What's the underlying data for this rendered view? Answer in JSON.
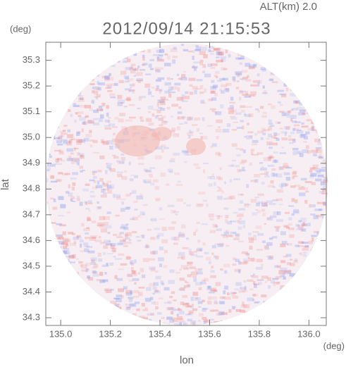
{
  "chart_data": {
    "type": "image",
    "annotation": "ALT(km) 2.0",
    "title": "2012/09/14 21:15:53",
    "xlabel": "lon",
    "ylabel": "lat",
    "xunit": "(deg)",
    "yunit": "(deg)",
    "xlim": [
      134.94,
      136.07
    ],
    "ylim": [
      34.27,
      35.37
    ],
    "xticks": [
      {
        "value": 135,
        "label": "135.0"
      },
      135.2,
      135.4,
      135.6,
      135.8,
      {
        "value": 136,
        "label": "136.0"
      }
    ],
    "yticks": [
      34.3,
      34.4,
      34.5,
      34.6,
      34.7,
      34.8,
      34.9,
      {
        "value": 35,
        "label": "35.0"
      },
      35.1,
      35.2,
      35.3
    ]
  }
}
